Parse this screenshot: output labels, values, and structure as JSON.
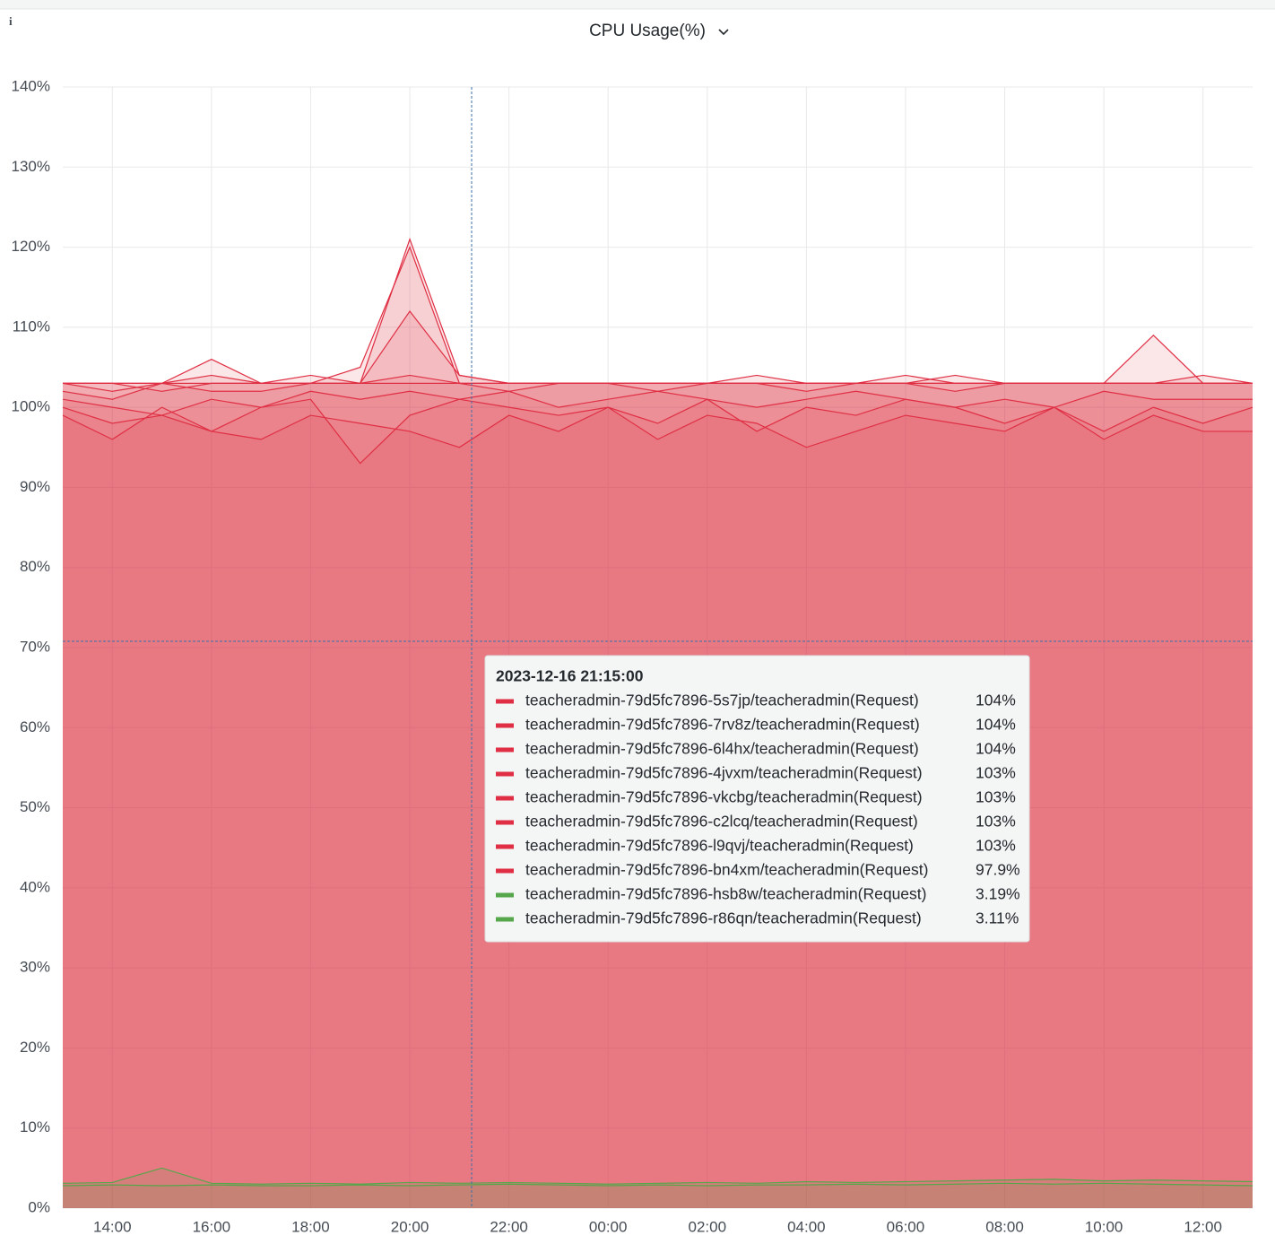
{
  "chart_data": {
    "type": "line",
    "title": "CPU Usage(%)",
    "x": [
      null,
      "14:00",
      null,
      "16:00",
      null,
      "18:00",
      null,
      "20:00",
      null,
      "22:00",
      null,
      "00:00",
      null,
      "02:00",
      null,
      "04:00",
      null,
      "06:00",
      null,
      "08:00",
      null,
      "10:00",
      null,
      "12:00",
      null
    ],
    "ylim": [
      0,
      140
    ],
    "yticks": [
      {
        "value": 0,
        "label": "0%"
      },
      {
        "value": 10,
        "label": "10%"
      },
      {
        "value": 20,
        "label": "20%"
      },
      {
        "value": 30,
        "label": "30%"
      },
      {
        "value": 40,
        "label": "40%"
      },
      {
        "value": 50,
        "label": "50%"
      },
      {
        "value": 60,
        "label": "60%"
      },
      {
        "value": 70,
        "label": "70%"
      },
      {
        "value": 80,
        "label": "80%"
      },
      {
        "value": 90,
        "label": "90%"
      },
      {
        "value": 100,
        "label": "100%"
      },
      {
        "value": 110,
        "label": "110%"
      },
      {
        "value": 120,
        "label": "120%"
      },
      {
        "value": 130,
        "label": "130%"
      },
      {
        "value": 140,
        "label": "140%"
      }
    ],
    "grid": true,
    "series": [
      {
        "name": "teacheradmin-79d5fc7896-5s7jp/teacheradmin(Request)",
        "color": "#e02f44",
        "values": [
          103,
          103,
          103,
          104,
          103,
          103,
          103,
          121,
          104,
          103,
          103,
          103,
          103,
          103,
          103,
          103,
          103,
          103,
          103,
          103,
          103,
          103,
          103,
          103,
          103
        ]
      },
      {
        "name": "teacheradmin-79d5fc7896-7rv8z/teacheradmin(Request)",
        "color": "#e02f44",
        "values": [
          103,
          102,
          103,
          103,
          103,
          104,
          103,
          112,
          104,
          103,
          103,
          103,
          103,
          103,
          104,
          103,
          103,
          103,
          104,
          103,
          103,
          103,
          109,
          103,
          103
        ]
      },
      {
        "name": "teacheradmin-79d5fc7896-6l4hx/teacheradmin(Request)",
        "color": "#e02f44",
        "values": [
          103,
          103,
          102,
          103,
          103,
          103,
          103,
          103,
          103,
          103,
          103,
          103,
          103,
          103,
          103,
          103,
          103,
          103,
          103,
          103,
          103,
          103,
          103,
          103,
          103
        ]
      },
      {
        "name": "teacheradmin-79d5fc7896-4jvxm/teacheradmin(Request)",
        "color": "#e02f44",
        "values": [
          102,
          101,
          103,
          102,
          102,
          103,
          103,
          104,
          103,
          102,
          103,
          103,
          102,
          103,
          103,
          102,
          103,
          103,
          102,
          103,
          103,
          103,
          103,
          103,
          103
        ]
      },
      {
        "name": "teacheradmin-79d5fc7896-vkcbg/teacheradmin(Request)",
        "color": "#e02f44",
        "values": [
          103,
          103,
          103,
          106,
          103,
          103,
          105,
          120,
          103,
          103,
          103,
          103,
          103,
          103,
          103,
          103,
          103,
          104,
          103,
          103,
          103,
          103,
          103,
          104,
          103
        ]
      },
      {
        "name": "teacheradmin-79d5fc7896-c2lcq/teacheradmin(Request)",
        "color": "#e02f44",
        "values": [
          101,
          100,
          99,
          101,
          100,
          102,
          101,
          102,
          101,
          102,
          100,
          101,
          102,
          101,
          100,
          101,
          102,
          101,
          100,
          101,
          100,
          102,
          101,
          101,
          101
        ]
      },
      {
        "name": "teacheradmin-79d5fc7896-l9qvj/teacheradmin(Request)",
        "color": "#e02f44",
        "values": [
          100,
          98,
          99,
          97,
          100,
          101,
          93,
          99,
          101,
          100,
          99,
          100,
          98,
          101,
          97,
          100,
          99,
          101,
          100,
          98,
          100,
          97,
          100,
          98,
          100
        ]
      },
      {
        "name": "teacheradmin-79d5fc7896-bn4xm/teacheradmin(Request)",
        "color": "#e02f44",
        "values": [
          99,
          96,
          100,
          97,
          96,
          99,
          98,
          97,
          95,
          99,
          97,
          100,
          96,
          99,
          98,
          95,
          97,
          99,
          98,
          97,
          100,
          96,
          99,
          97,
          97
        ]
      },
      {
        "name": "teacheradmin-79d5fc7896-hsb8w/teacheradmin(Request)",
        "color": "#56a64b",
        "values": [
          3.1,
          3.2,
          5.0,
          3.1,
          3.0,
          3.1,
          3.0,
          3.2,
          3.1,
          3.2,
          3.1,
          3.0,
          3.1,
          3.2,
          3.1,
          3.3,
          3.2,
          3.3,
          3.4,
          3.5,
          3.6,
          3.4,
          3.5,
          3.4,
          3.3
        ]
      },
      {
        "name": "teacheradmin-79d5fc7896-r86qn/teacheradmin(Request)",
        "color": "#56a64b",
        "values": [
          2.8,
          2.9,
          2.8,
          2.9,
          2.8,
          2.8,
          2.9,
          2.8,
          2.9,
          3.0,
          2.9,
          2.8,
          2.9,
          2.8,
          2.9,
          2.9,
          3.0,
          2.9,
          3.0,
          3.1,
          3.0,
          3.1,
          3.0,
          2.9,
          2.8
        ]
      }
    ],
    "tooltip": {
      "time": "2023-12-16 21:15:00",
      "values": [
        104,
        104,
        104,
        103,
        103,
        103,
        103,
        97.9,
        3.19,
        3.11
      ],
      "value_labels": [
        "104%",
        "104%",
        "104%",
        "103%",
        "103%",
        "103%",
        "103%",
        "97.9%",
        "3.19%",
        "3.11%"
      ]
    }
  }
}
